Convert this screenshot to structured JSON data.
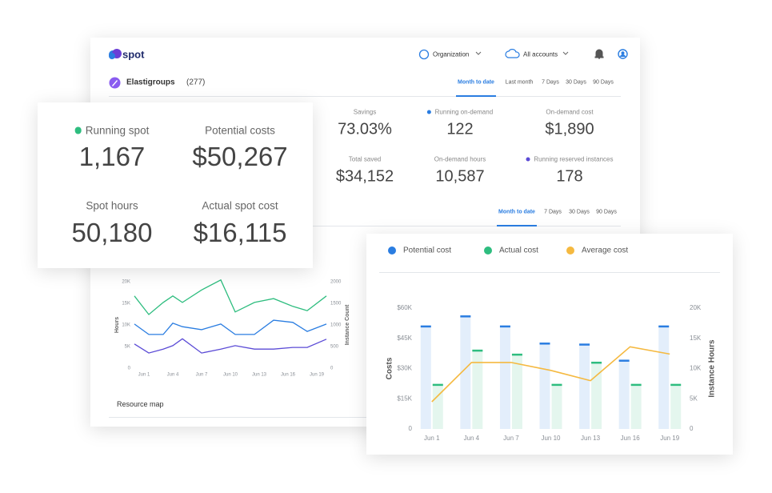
{
  "header": {
    "logo": "spot",
    "organization": "Organization",
    "accounts": "All accounts"
  },
  "elastigroups": {
    "title": "Elastigroups",
    "count": "(277)"
  },
  "period_tabs": [
    "Month to date",
    "Last month",
    "7 Days",
    "30 Days",
    "90 Days"
  ],
  "stats": [
    {
      "label": "Savings",
      "value": "73.03%"
    },
    {
      "label": "Running on-demand",
      "value": "122",
      "dot": "#2a7de1"
    },
    {
      "label": "On-demand cost",
      "value": "$1,890"
    },
    {
      "label": "Total saved",
      "value": "$34,152"
    },
    {
      "label": "On-demand hours",
      "value": "10,587"
    },
    {
      "label": "Running reserved instances",
      "value": "178",
      "dot": "#5b4bd6"
    }
  ],
  "chart_tabs": [
    "Month to date",
    "7 Days",
    "30 Days",
    "90 Days"
  ],
  "spot_stats": [
    {
      "label": "Running spot",
      "value": "1,167",
      "dot": "#2ebd7f"
    },
    {
      "label": "Potential costs",
      "value": "$50,267"
    },
    {
      "label": "Spot hours",
      "value": "50,180"
    },
    {
      "label": "Actual spot cost",
      "value": "$16,115"
    }
  ],
  "resource_map": "Resource map",
  "chart_data": [
    {
      "type": "line",
      "ylabel": "Hours",
      "y2label": "Instance Count",
      "x": [
        0,
        1.5,
        3,
        4,
        5,
        7,
        9,
        10.5,
        12.5,
        14.5,
        16.5,
        18,
        20
      ],
      "xlim": [
        0,
        20
      ],
      "xticks": [
        {
          "value": 1,
          "label": "Jun 1"
        },
        {
          "value": 4,
          "label": "Jun 4"
        },
        {
          "value": 7,
          "label": "Jun 7"
        },
        {
          "value": 10,
          "label": "Jun 10"
        },
        {
          "value": 13,
          "label": "Jun 13"
        },
        {
          "value": 16,
          "label": "Jun 16"
        },
        {
          "value": 19,
          "label": "Jun 19"
        }
      ],
      "ylim": [
        0,
        20000
      ],
      "yticks": [
        0,
        {
          "value": 5000,
          "label": "5K"
        },
        {
          "value": 10000,
          "label": "10K"
        },
        {
          "value": 15000,
          "label": "15K"
        },
        {
          "value": 20000,
          "label": "20K"
        }
      ],
      "y2lim": [
        0,
        2000
      ],
      "y2ticks": [
        0,
        500,
        1000,
        1500,
        2000
      ],
      "series": [
        {
          "color": "#2ebd7f",
          "values": [
            16700,
            12400,
            15200,
            16700,
            15200,
            18100,
            20400,
            13000,
            15200,
            16100,
            14300,
            13300,
            16700
          ]
        },
        {
          "color": "#2a7de1",
          "values": [
            10200,
            7800,
            7800,
            10400,
            9600,
            8900,
            10200,
            7800,
            7800,
            11100,
            10600,
            8500,
            10200
          ]
        },
        {
          "color": "#5b4bd6",
          "values": [
            5600,
            3500,
            4400,
            5200,
            6800,
            3500,
            4400,
            5200,
            4400,
            4400,
            4800,
            4800,
            6700
          ]
        }
      ]
    },
    {
      "type": "bar",
      "ylabel": "Costs",
      "y2label": "Instance Hours",
      "categories": [
        "Jun 1",
        "Jun 4",
        "Jun 7",
        "Jun 10",
        "Jun 13",
        "Jun 16",
        "Jun 19"
      ],
      "ylim": [
        0,
        60000
      ],
      "yticks": [
        0,
        {
          "value": 15000,
          "label": "$15K"
        },
        {
          "value": 30000,
          "label": "$30K"
        },
        {
          "value": 45000,
          "label": "$45K"
        },
        {
          "value": 60000,
          "label": "$60K"
        }
      ],
      "y2lim": [
        0,
        20000
      ],
      "y2ticks": [
        0,
        {
          "value": 5000,
          "label": "5K"
        },
        {
          "value": 10000,
          "label": "10K"
        },
        {
          "value": 15000,
          "label": "15K"
        },
        {
          "value": 20000,
          "label": "20K"
        }
      ],
      "series": [
        {
          "name": "Potential cost",
          "color": "#2a7de1",
          "values": [
            51000,
            56000,
            51000,
            42500,
            42000,
            34000,
            51000
          ]
        },
        {
          "name": "Actual cost",
          "color": "#2ebd7f",
          "values": [
            22000,
            39000,
            37000,
            22000,
            33000,
            22000,
            22000
          ]
        },
        {
          "name": "Average cost",
          "color": "#f5b940",
          "type": "line",
          "axis": "y2",
          "values": [
            4500,
            11000,
            11000,
            9700,
            8000,
            13600,
            12400
          ]
        }
      ]
    }
  ]
}
